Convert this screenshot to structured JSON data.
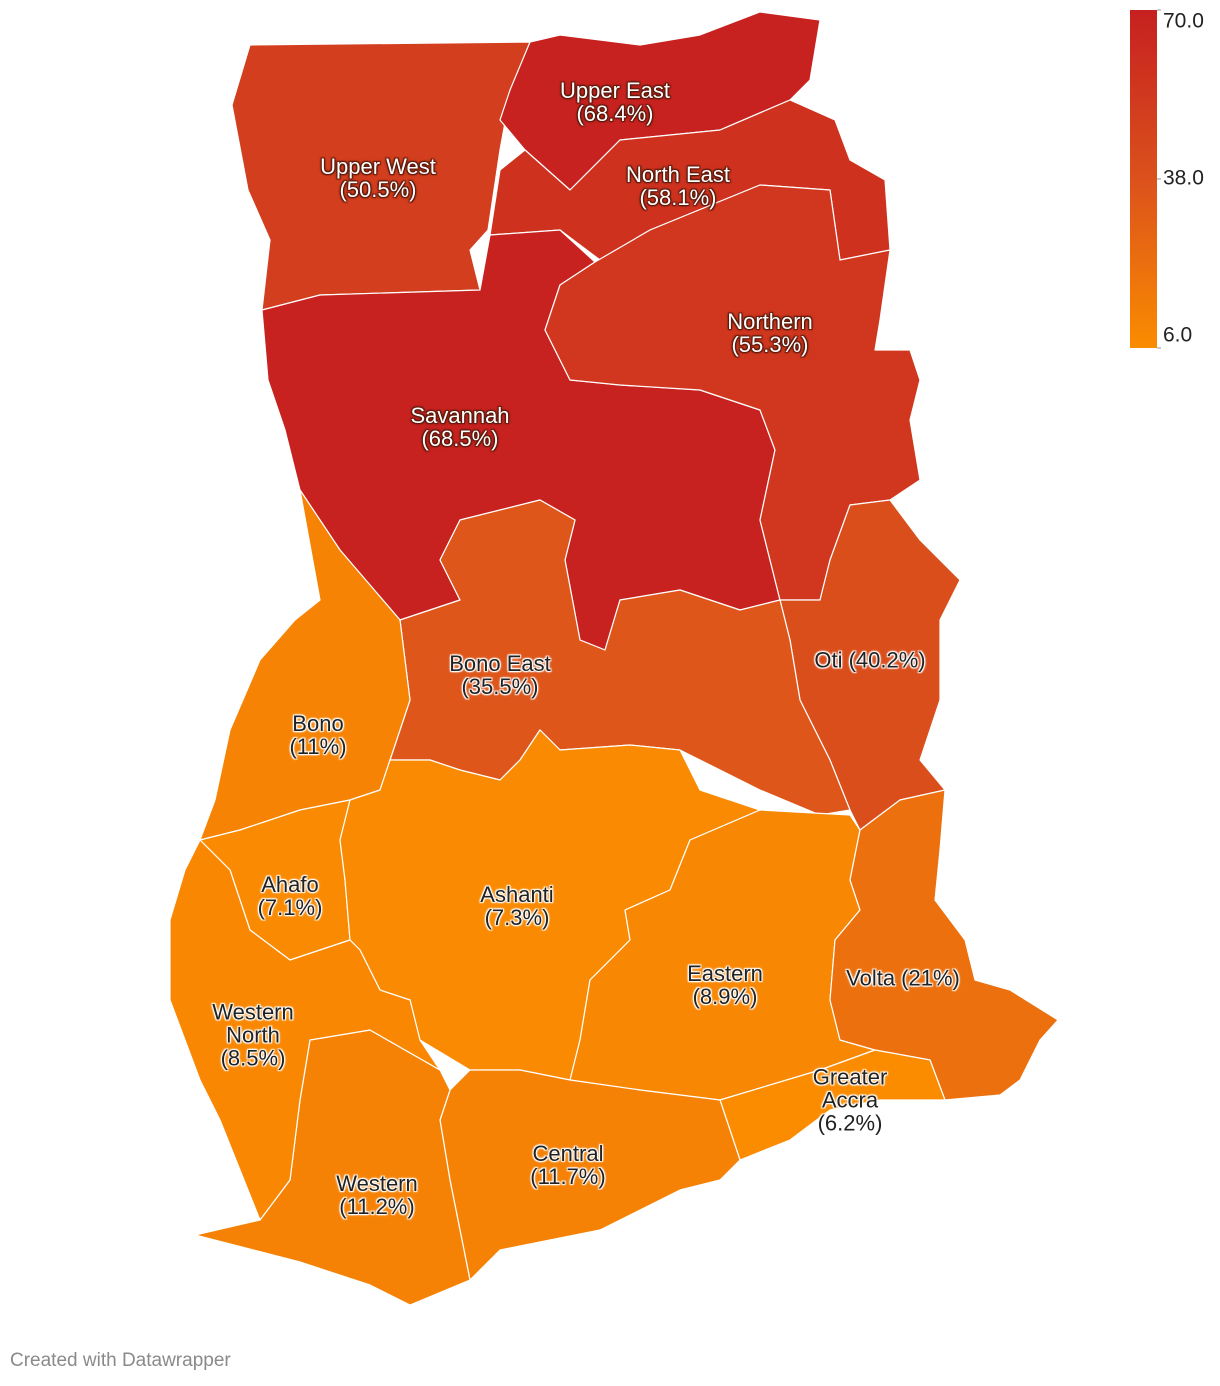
{
  "map": {
    "regions": [
      {
        "label": "Upper West (50.5%)",
        "value": 50.5
      },
      {
        "label": "Upper East (68.4%)",
        "value": 68.4
      },
      {
        "label": "North East (58.1%)",
        "value": 58.1
      },
      {
        "label": "Savannah (68.5%)",
        "value": 68.5
      },
      {
        "label": "Northern (55.3%)",
        "value": 55.3
      },
      {
        "label": "Oti (40.2%)",
        "value": 40.2
      },
      {
        "label": "Bono East (35.5%)",
        "value": 35.5
      },
      {
        "label": "Bono (11%)",
        "value": 11
      },
      {
        "label": "Ahafo (7.1%)",
        "value": 7.1
      },
      {
        "label": "Ashanti (7.3%)",
        "value": 7.3
      },
      {
        "label": "Eastern (8.9%)",
        "value": 8.9
      },
      {
        "label": "Volta (21%)",
        "value": 21
      },
      {
        "label": "Greater Accra (6.2%)",
        "value": 6.2
      },
      {
        "label": "Central (11.7%)",
        "value": 11.7
      },
      {
        "label": "Western (11.2%)",
        "value": 11.2
      },
      {
        "label": "Western North (8.5%)",
        "value": 8.5
      }
    ],
    "scale": {
      "range": [
        6,
        70
      ],
      "colors": [
        "#fb8c00",
        "#db511c",
        "#c62020"
      ],
      "ticks": [
        {
          "value": 70,
          "label": "70.0"
        },
        {
          "value": 38,
          "label": "38.0"
        },
        {
          "value": 6,
          "label": "6.0"
        }
      ]
    },
    "footer": "Created with Datawrapper"
  }
}
